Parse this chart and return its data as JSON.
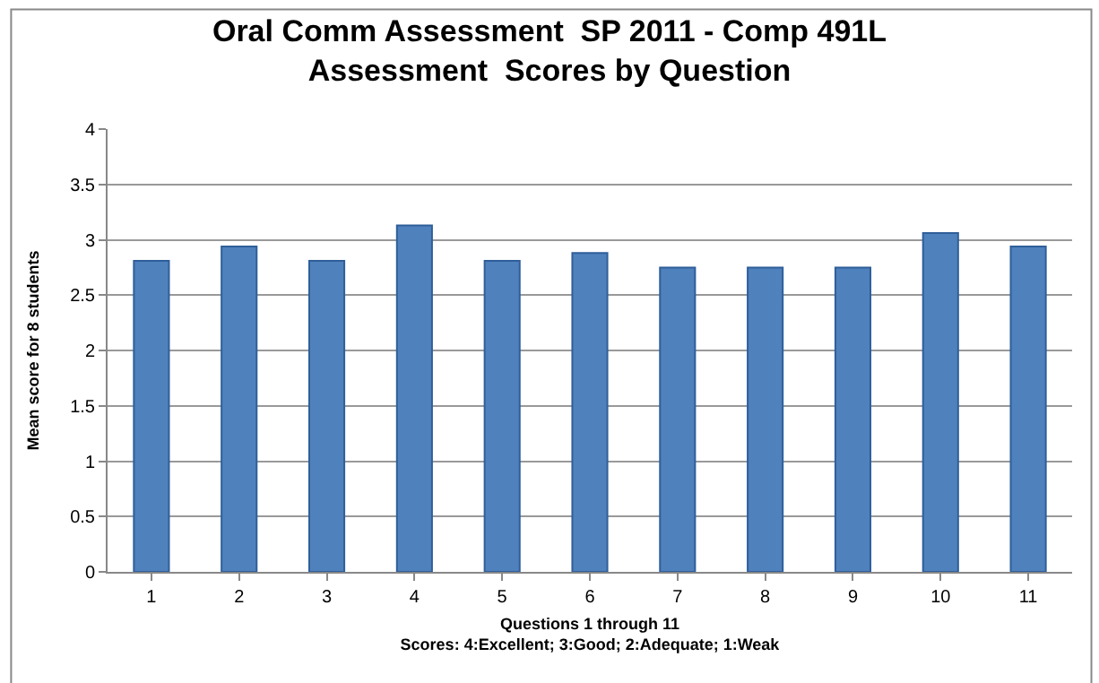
{
  "chart_data": {
    "type": "bar",
    "title": "Oral Comm Assessment  SP 2011 - Comp 491L\nAssessment  Scores by Question",
    "categories": [
      "1",
      "2",
      "3",
      "4",
      "5",
      "6",
      "7",
      "8",
      "9",
      "10",
      "11"
    ],
    "values": [
      2.81,
      2.94,
      2.81,
      3.13,
      2.81,
      2.88,
      2.75,
      2.75,
      2.75,
      3.06,
      2.94
    ],
    "color": "#4f81bd",
    "xlabel": "Questions 1 through 11\nScores: 4:Excellent; 3:Good; 2:Adequate; 1:Weak",
    "ylabel": "Mean score for 8 students",
    "ylim": [
      0,
      4
    ],
    "yticks": [
      0,
      0.5,
      1,
      1.5,
      2,
      2.5,
      3,
      3.5,
      4
    ],
    "grid": "y"
  }
}
